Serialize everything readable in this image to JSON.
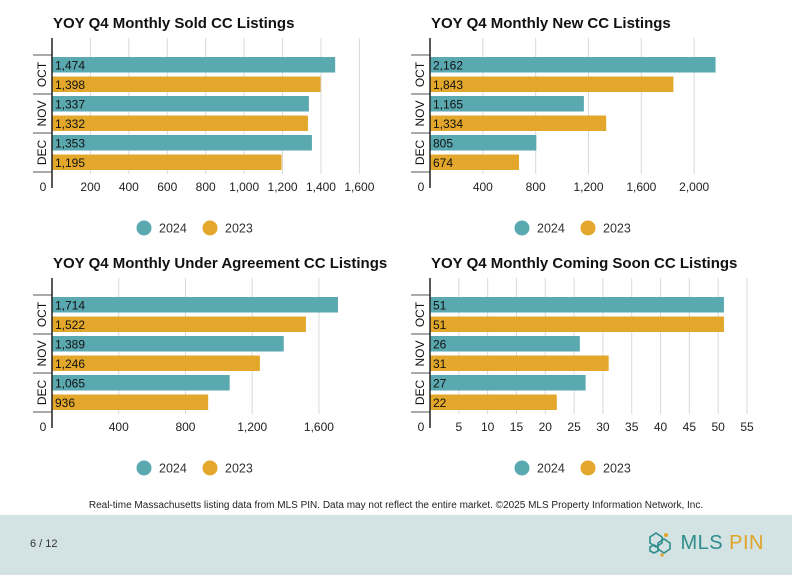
{
  "colors": {
    "series_2024": "#5aa9b0",
    "series_2023": "#e3a82b",
    "grid": "#d9d9d9",
    "axis": "#222222"
  },
  "chart_data": [
    {
      "type": "bar",
      "title": "YOY Q4 Monthly Sold CC Listings",
      "categories": [
        "OCT",
        "NOV",
        "DEC"
      ],
      "series": [
        {
          "name": "2024",
          "values": [
            1474,
            1337,
            1353
          ],
          "labels": [
            "1,474",
            "1,337",
            "1,353"
          ]
        },
        {
          "name": "2023",
          "values": [
            1398,
            1332,
            1195
          ],
          "labels": [
            "1,398",
            "1,332",
            "1,195"
          ]
        }
      ],
      "xlim": [
        0,
        1650
      ],
      "ticks": [
        0,
        200,
        400,
        600,
        800,
        1000,
        1200,
        1400,
        1600
      ],
      "tick_labels": [
        "0",
        "200",
        "400",
        "600",
        "800",
        "1,000",
        "1,200",
        "1,400",
        "1,600"
      ],
      "legend": "bottom",
      "grid": true
    },
    {
      "type": "bar",
      "title": "YOY Q4 Monthly New CC Listings",
      "categories": [
        "OCT",
        "NOV",
        "DEC"
      ],
      "series": [
        {
          "name": "2024",
          "values": [
            2162,
            1165,
            805
          ],
          "labels": [
            "2,162",
            "1,165",
            "805"
          ]
        },
        {
          "name": "2023",
          "values": [
            1843,
            1334,
            674
          ],
          "labels": [
            "1,843",
            "1,334",
            "674"
          ]
        }
      ],
      "xlim": [
        0,
        2400
      ],
      "ticks": [
        0,
        400,
        800,
        1200,
        1600,
        2000
      ],
      "tick_labels": [
        "0",
        "400",
        "800",
        "1,200",
        "1,600",
        "2,000"
      ],
      "legend": "bottom",
      "grid": true
    },
    {
      "type": "bar",
      "title": "YOY Q4 Monthly Under Agreement CC Listings",
      "categories": [
        "OCT",
        "NOV",
        "DEC"
      ],
      "series": [
        {
          "name": "2024",
          "values": [
            1714,
            1389,
            1065
          ],
          "labels": [
            "1,714",
            "1,389",
            "1,065"
          ]
        },
        {
          "name": "2023",
          "values": [
            1522,
            1246,
            936
          ],
          "labels": [
            "1,522",
            "1,246",
            "936"
          ]
        }
      ],
      "xlim": [
        0,
        1900
      ],
      "ticks": [
        0,
        400,
        800,
        1200,
        1600
      ],
      "tick_labels": [
        "0",
        "400",
        "800",
        "1,200",
        "1,600"
      ],
      "legend": "bottom",
      "grid": true
    },
    {
      "type": "bar",
      "title": "YOY Q4 Monthly Coming Soon CC Listings",
      "categories": [
        "OCT",
        "NOV",
        "DEC"
      ],
      "series": [
        {
          "name": "2024",
          "values": [
            51,
            26,
            27
          ],
          "labels": [
            "51",
            "26",
            "27"
          ]
        },
        {
          "name": "2023",
          "values": [
            51,
            31,
            22
          ],
          "labels": [
            "51",
            "31",
            "22"
          ]
        }
      ],
      "xlim": [
        0,
        55
      ],
      "ticks": [
        0,
        5,
        10,
        15,
        20,
        25,
        30,
        35,
        40,
        45,
        50,
        55
      ],
      "tick_labels": [
        "0",
        "5",
        "10",
        "15",
        "20",
        "25",
        "30",
        "35",
        "40",
        "45",
        "50",
        "55"
      ],
      "legend": "bottom",
      "grid": true
    }
  ],
  "footnote": "Real-time Massachusetts listing data from MLS PIN. Data may not reflect the entire market. ©2025 MLS Property Information Network, Inc.",
  "footer": {
    "page": "6 / 12",
    "logo_mls": "MLS",
    "logo_pin": "PIN"
  }
}
